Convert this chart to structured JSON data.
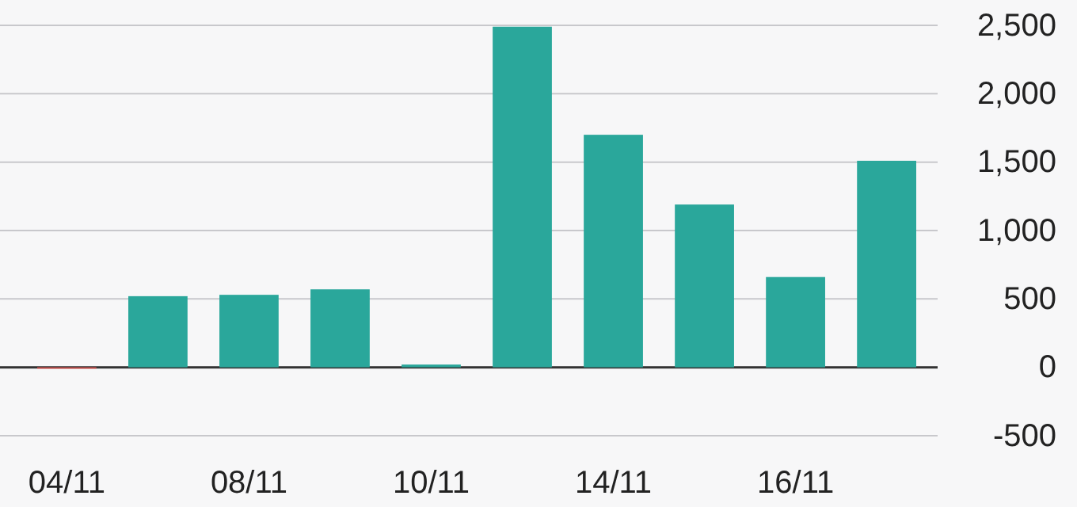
{
  "chart_data": {
    "type": "bar",
    "categories": [
      "04/11",
      null,
      "08/11",
      null,
      "10/11",
      null,
      "14/11",
      null,
      "16/11",
      null
    ],
    "values": [
      -10,
      520,
      530,
      570,
      20,
      2490,
      1700,
      1190,
      660,
      1510
    ],
    "colors": [
      "#d9534f",
      "#2aa79b",
      "#2aa79b",
      "#2aa79b",
      "#2aa79b",
      "#2aa79b",
      "#2aa79b",
      "#2aa79b",
      "#2aa79b",
      "#2aa79b"
    ],
    "ylim": [
      -500,
      2500
    ],
    "yticks": [
      {
        "value": 2500,
        "label": "2,500"
      },
      {
        "value": 2000,
        "label": "2,000"
      },
      {
        "value": 1500,
        "label": "1,500"
      },
      {
        "value": 1000,
        "label": "1,000"
      },
      500,
      0,
      -500
    ],
    "grid": "y"
  }
}
